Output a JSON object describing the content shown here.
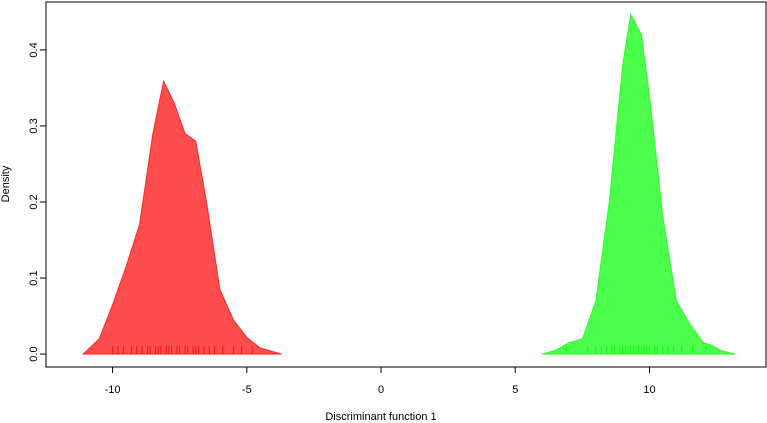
{
  "chart_data": {
    "type": "density",
    "xlabel": "Discriminant function 1",
    "ylabel": "Density",
    "xlim": [
      -12.48,
      14.34
    ],
    "ylim": [
      -0.017,
      0.463
    ],
    "xticks": [
      -10,
      -5,
      0,
      5,
      10
    ],
    "yticks": [
      {
        "value": 0,
        "label": "0.0"
      },
      0.1,
      0.2,
      0.3,
      0.4
    ],
    "grid": false,
    "alpha": 0.7,
    "series": [
      {
        "color": "#ff0000",
        "x": [
          -11.1,
          -10.5,
          -10,
          -9.5,
          -9,
          -8.5,
          -8.1,
          -7.7,
          -7.3,
          -6.9,
          -6.5,
          -6,
          -5.5,
          -5,
          -4.5,
          -3.7
        ],
        "values": [
          0,
          0.02,
          0.065,
          0.115,
          0.17,
          0.29,
          0.359,
          0.33,
          0.29,
          0.28,
          0.2,
          0.085,
          0.045,
          0.022,
          0.008,
          0
        ],
        "rug": [
          -10.0,
          -9.8,
          -9.6,
          -9.3,
          -9.1,
          -8.9,
          -8.7,
          -8.6,
          -8.4,
          -8.3,
          -8.2,
          -8.0,
          -7.9,
          -7.8,
          -7.6,
          -7.5,
          -7.3,
          -7.2,
          -7.0,
          -6.9,
          -6.8,
          -6.6,
          -6.4,
          -6.2,
          -5.9,
          -5.5,
          -5.2,
          -4.8
        ]
      },
      {
        "color": "#00ff00",
        "x": [
          6.0,
          6.5,
          7,
          7.5,
          8,
          8.5,
          9,
          9.3,
          9.7,
          10,
          10.5,
          11,
          11.5,
          12,
          12.3,
          12.7,
          13.2
        ],
        "values": [
          0,
          0.005,
          0.015,
          0.02,
          0.07,
          0.2,
          0.38,
          0.447,
          0.42,
          0.34,
          0.18,
          0.07,
          0.04,
          0.015,
          0.012,
          0.004,
          0
        ],
        "rug": [
          6.9,
          7.7,
          8.0,
          8.2,
          8.4,
          8.6,
          8.7,
          8.9,
          9.0,
          9.1,
          9.2,
          9.3,
          9.4,
          9.5,
          9.6,
          9.7,
          9.8,
          9.9,
          10.0,
          10.2,
          10.3,
          10.5,
          10.7,
          10.9,
          11.2,
          11.6,
          12.1
        ]
      }
    ]
  }
}
